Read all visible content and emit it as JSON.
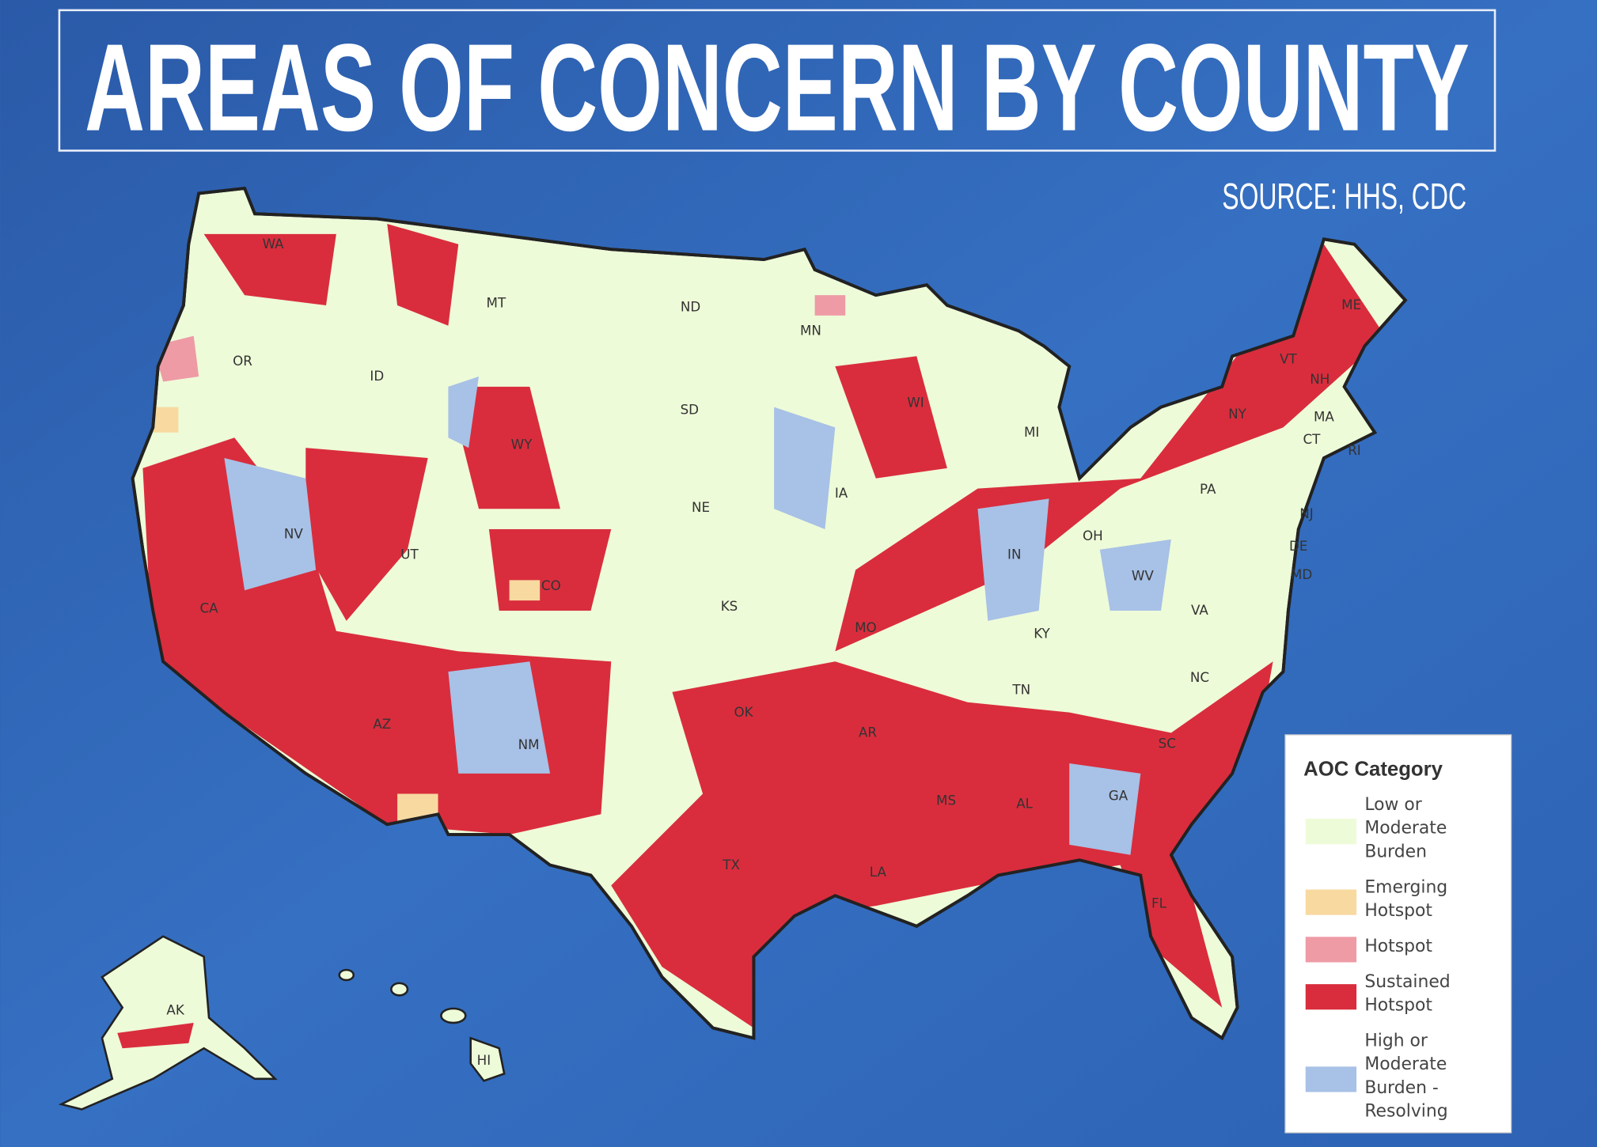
{
  "header": {
    "title": "AREAS OF CONCERN BY COUNTY",
    "source": "SOURCE: HHS, CDC"
  },
  "map": {
    "state_labels": [
      "WA",
      "OR",
      "CA",
      "NV",
      "ID",
      "MT",
      "WY",
      "UT",
      "CO",
      "AZ",
      "NM",
      "ND",
      "SD",
      "NE",
      "KS",
      "OK",
      "TX",
      "MN",
      "IA",
      "MO",
      "AR",
      "LA",
      "WI",
      "MI",
      "IN",
      "OH",
      "KY",
      "TN",
      "MS",
      "AL",
      "GA",
      "FL",
      "SC",
      "NC",
      "VA",
      "WV",
      "PA",
      "NY",
      "VT",
      "NH",
      "ME",
      "MA",
      "CT",
      "RI",
      "NJ",
      "DE",
      "MD",
      "AK",
      "HI"
    ]
  },
  "legend": {
    "title": "AOC Category",
    "items": [
      {
        "lines": [
          "Low or",
          "Moderate",
          "Burden"
        ],
        "color": "#eefbd8"
      },
      {
        "lines": [
          "Emerging",
          "Hotspot"
        ],
        "color": "#f8d9a0"
      },
      {
        "lines": [
          "Hotspot"
        ],
        "color": "#ee9ba6"
      },
      {
        "lines": [
          "Sustained",
          "Hotspot"
        ],
        "color": "#d92d3d"
      },
      {
        "lines": [
          "High or",
          "Moderate",
          "Burden -",
          "Resolving"
        ],
        "color": "#a8c1e6"
      }
    ]
  }
}
